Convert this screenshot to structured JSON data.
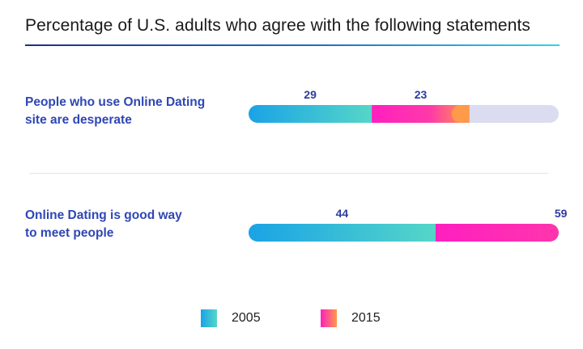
{
  "chart_data": {
    "type": "bar",
    "title": "Percentage of U.S. adults who agree with the following statements",
    "categories": [
      {
        "line1": "People who use Online Dating",
        "line2": "site are desperate"
      },
      {
        "line1": "Online Dating is good way",
        "line2": "to meet people"
      }
    ],
    "series": [
      {
        "name": "2005",
        "values": [
          29,
          44
        ],
        "color_start": "#1aa3e6",
        "color_end": "#55d6c8"
      },
      {
        "name": "2015",
        "values": [
          23,
          59
        ],
        "color_start": "#ff1fc0",
        "color_end": "#ff9a4a"
      }
    ],
    "xlim": [
      0,
      73
    ],
    "track_color": "#dcdcf0",
    "legend_position": "bottom"
  }
}
